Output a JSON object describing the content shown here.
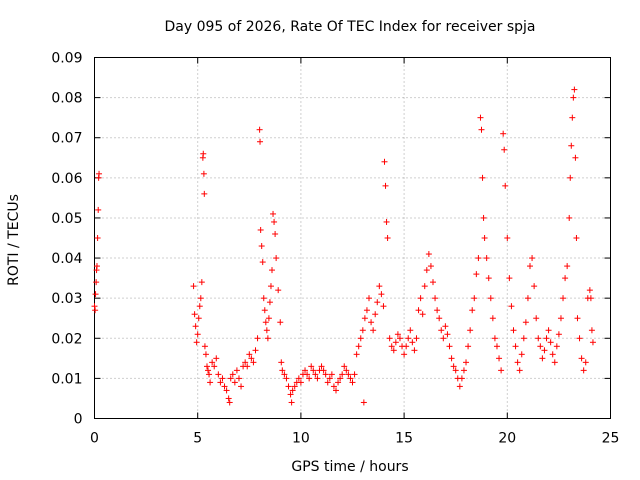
{
  "chart_data": {
    "type": "scatter",
    "title": "Day 095 of 2026, Rate Of TEC Index for receiver spja",
    "xlabel": "GPS time / hours",
    "ylabel": "ROTI / TECUs",
    "xlim": [
      0,
      25
    ],
    "ylim": [
      0,
      0.09
    ],
    "xticks": [
      0,
      5,
      10,
      15,
      20,
      25
    ],
    "xtick_labels": [
      "0",
      "5",
      "10",
      "15",
      "20",
      "25"
    ],
    "yticks": [
      0,
      0.01,
      0.02,
      0.03,
      0.04,
      0.05,
      0.06,
      0.07,
      0.08,
      0.09
    ],
    "ytick_labels": [
      "0",
      "0.01",
      "0.02",
      "0.03",
      "0.04",
      "0.05",
      "0.06",
      "0.07",
      "0.08",
      "0.09"
    ],
    "grid": true,
    "marker": "+",
    "color": "#ff0000",
    "series": [
      {
        "name": "ROTI",
        "points": [
          [
            0.0,
            0.028
          ],
          [
            0.03,
            0.027
          ],
          [
            0.05,
            0.031
          ],
          [
            0.08,
            0.034
          ],
          [
            0.1,
            0.037
          ],
          [
            0.12,
            0.038
          ],
          [
            0.15,
            0.045
          ],
          [
            0.18,
            0.052
          ],
          [
            0.2,
            0.06
          ],
          [
            0.22,
            0.061
          ],
          [
            4.8,
            0.033
          ],
          [
            4.85,
            0.026
          ],
          [
            4.9,
            0.023
          ],
          [
            4.95,
            0.019
          ],
          [
            5.0,
            0.021
          ],
          [
            5.05,
            0.025
          ],
          [
            5.1,
            0.028
          ],
          [
            5.15,
            0.03
          ],
          [
            5.2,
            0.034
          ],
          [
            5.25,
            0.065
          ],
          [
            5.27,
            0.066
          ],
          [
            5.3,
            0.061
          ],
          [
            5.32,
            0.056
          ],
          [
            5.35,
            0.018
          ],
          [
            5.4,
            0.016
          ],
          [
            5.45,
            0.013
          ],
          [
            5.5,
            0.012
          ],
          [
            5.55,
            0.011
          ],
          [
            5.6,
            0.009
          ],
          [
            5.7,
            0.014
          ],
          [
            5.8,
            0.013
          ],
          [
            5.9,
            0.015
          ],
          [
            6.0,
            0.011
          ],
          [
            6.1,
            0.009
          ],
          [
            6.2,
            0.01
          ],
          [
            6.3,
            0.008
          ],
          [
            6.4,
            0.007
          ],
          [
            6.5,
            0.005
          ],
          [
            6.55,
            0.004
          ],
          [
            6.6,
            0.01
          ],
          [
            6.7,
            0.011
          ],
          [
            6.8,
            0.009
          ],
          [
            6.9,
            0.012
          ],
          [
            7.0,
            0.01
          ],
          [
            7.1,
            0.008
          ],
          [
            7.2,
            0.013
          ],
          [
            7.3,
            0.014
          ],
          [
            7.4,
            0.013
          ],
          [
            7.5,
            0.016
          ],
          [
            7.6,
            0.015
          ],
          [
            7.7,
            0.014
          ],
          [
            7.8,
            0.017
          ],
          [
            7.9,
            0.02
          ],
          [
            8.0,
            0.072
          ],
          [
            8.02,
            0.069
          ],
          [
            8.05,
            0.047
          ],
          [
            8.1,
            0.043
          ],
          [
            8.15,
            0.039
          ],
          [
            8.2,
            0.03
          ],
          [
            8.25,
            0.027
          ],
          [
            8.3,
            0.024
          ],
          [
            8.35,
            0.022
          ],
          [
            8.4,
            0.02
          ],
          [
            8.45,
            0.025
          ],
          [
            8.5,
            0.029
          ],
          [
            8.55,
            0.033
          ],
          [
            8.6,
            0.037
          ],
          [
            8.65,
            0.051
          ],
          [
            8.7,
            0.049
          ],
          [
            8.75,
            0.046
          ],
          [
            8.8,
            0.04
          ],
          [
            8.9,
            0.032
          ],
          [
            9.0,
            0.024
          ],
          [
            9.05,
            0.014
          ],
          [
            9.1,
            0.012
          ],
          [
            9.2,
            0.011
          ],
          [
            9.3,
            0.01
          ],
          [
            9.4,
            0.008
          ],
          [
            9.5,
            0.006
          ],
          [
            9.55,
            0.004
          ],
          [
            9.6,
            0.007
          ],
          [
            9.7,
            0.008
          ],
          [
            9.8,
            0.009
          ],
          [
            9.9,
            0.01
          ],
          [
            10.0,
            0.009
          ],
          [
            10.1,
            0.011
          ],
          [
            10.2,
            0.012
          ],
          [
            10.3,
            0.011
          ],
          [
            10.4,
            0.01
          ],
          [
            10.5,
            0.013
          ],
          [
            10.6,
            0.012
          ],
          [
            10.7,
            0.011
          ],
          [
            10.8,
            0.01
          ],
          [
            10.9,
            0.012
          ],
          [
            11.0,
            0.013
          ],
          [
            11.1,
            0.012
          ],
          [
            11.2,
            0.011
          ],
          [
            11.3,
            0.009
          ],
          [
            11.4,
            0.01
          ],
          [
            11.5,
            0.011
          ],
          [
            11.6,
            0.008
          ],
          [
            11.7,
            0.007
          ],
          [
            11.8,
            0.009
          ],
          [
            11.9,
            0.01
          ],
          [
            12.0,
            0.011
          ],
          [
            12.1,
            0.013
          ],
          [
            12.2,
            0.012
          ],
          [
            12.3,
            0.011
          ],
          [
            12.4,
            0.01
          ],
          [
            12.5,
            0.009
          ],
          [
            12.6,
            0.011
          ],
          [
            12.7,
            0.016
          ],
          [
            12.8,
            0.018
          ],
          [
            12.9,
            0.02
          ],
          [
            13.0,
            0.022
          ],
          [
            13.05,
            0.004
          ],
          [
            13.1,
            0.025
          ],
          [
            13.2,
            0.027
          ],
          [
            13.3,
            0.03
          ],
          [
            13.4,
            0.024
          ],
          [
            13.5,
            0.022
          ],
          [
            13.6,
            0.026
          ],
          [
            13.7,
            0.029
          ],
          [
            13.8,
            0.033
          ],
          [
            13.9,
            0.031
          ],
          [
            14.0,
            0.028
          ],
          [
            14.05,
            0.064
          ],
          [
            14.1,
            0.058
          ],
          [
            14.15,
            0.049
          ],
          [
            14.2,
            0.045
          ],
          [
            14.3,
            0.02
          ],
          [
            14.4,
            0.018
          ],
          [
            14.5,
            0.017
          ],
          [
            14.6,
            0.019
          ],
          [
            14.7,
            0.021
          ],
          [
            14.8,
            0.02
          ],
          [
            14.9,
            0.018
          ],
          [
            15.0,
            0.016
          ],
          [
            15.1,
            0.018
          ],
          [
            15.2,
            0.02
          ],
          [
            15.3,
            0.022
          ],
          [
            15.4,
            0.019
          ],
          [
            15.5,
            0.017
          ],
          [
            15.6,
            0.02
          ],
          [
            15.7,
            0.027
          ],
          [
            15.8,
            0.03
          ],
          [
            15.9,
            0.026
          ],
          [
            16.0,
            0.033
          ],
          [
            16.1,
            0.037
          ],
          [
            16.2,
            0.041
          ],
          [
            16.3,
            0.038
          ],
          [
            16.4,
            0.034
          ],
          [
            16.5,
            0.03
          ],
          [
            16.6,
            0.027
          ],
          [
            16.7,
            0.025
          ],
          [
            16.8,
            0.022
          ],
          [
            16.9,
            0.02
          ],
          [
            17.0,
            0.023
          ],
          [
            17.1,
            0.021
          ],
          [
            17.2,
            0.018
          ],
          [
            17.3,
            0.015
          ],
          [
            17.4,
            0.013
          ],
          [
            17.5,
            0.012
          ],
          [
            17.6,
            0.01
          ],
          [
            17.7,
            0.008
          ],
          [
            17.8,
            0.01
          ],
          [
            17.9,
            0.012
          ],
          [
            18.0,
            0.014
          ],
          [
            18.1,
            0.018
          ],
          [
            18.2,
            0.022
          ],
          [
            18.3,
            0.027
          ],
          [
            18.4,
            0.03
          ],
          [
            18.5,
            0.036
          ],
          [
            18.6,
            0.04
          ],
          [
            18.7,
            0.075
          ],
          [
            18.75,
            0.072
          ],
          [
            18.8,
            0.06
          ],
          [
            18.85,
            0.05
          ],
          [
            18.9,
            0.045
          ],
          [
            19.0,
            0.04
          ],
          [
            19.1,
            0.035
          ],
          [
            19.2,
            0.03
          ],
          [
            19.3,
            0.025
          ],
          [
            19.4,
            0.02
          ],
          [
            19.5,
            0.018
          ],
          [
            19.6,
            0.015
          ],
          [
            19.7,
            0.012
          ],
          [
            19.8,
            0.071
          ],
          [
            19.85,
            0.067
          ],
          [
            19.9,
            0.058
          ],
          [
            20.0,
            0.045
          ],
          [
            20.1,
            0.035
          ],
          [
            20.2,
            0.028
          ],
          [
            20.3,
            0.022
          ],
          [
            20.4,
            0.018
          ],
          [
            20.5,
            0.014
          ],
          [
            20.6,
            0.012
          ],
          [
            20.7,
            0.016
          ],
          [
            20.8,
            0.02
          ],
          [
            20.9,
            0.024
          ],
          [
            21.0,
            0.03
          ],
          [
            21.1,
            0.038
          ],
          [
            21.2,
            0.04
          ],
          [
            21.3,
            0.033
          ],
          [
            21.4,
            0.025
          ],
          [
            21.5,
            0.02
          ],
          [
            21.6,
            0.018
          ],
          [
            21.7,
            0.015
          ],
          [
            21.8,
            0.017
          ],
          [
            21.9,
            0.02
          ],
          [
            22.0,
            0.022
          ],
          [
            22.1,
            0.019
          ],
          [
            22.2,
            0.016
          ],
          [
            22.3,
            0.014
          ],
          [
            22.4,
            0.018
          ],
          [
            22.5,
            0.021
          ],
          [
            22.6,
            0.025
          ],
          [
            22.7,
            0.03
          ],
          [
            22.8,
            0.035
          ],
          [
            22.9,
            0.038
          ],
          [
            23.0,
            0.05
          ],
          [
            23.05,
            0.06
          ],
          [
            23.1,
            0.068
          ],
          [
            23.15,
            0.075
          ],
          [
            23.2,
            0.08
          ],
          [
            23.25,
            0.082
          ],
          [
            23.3,
            0.065
          ],
          [
            23.35,
            0.045
          ],
          [
            23.4,
            0.025
          ],
          [
            23.5,
            0.02
          ],
          [
            23.6,
            0.015
          ],
          [
            23.7,
            0.012
          ],
          [
            23.8,
            0.014
          ],
          [
            23.9,
            0.03
          ],
          [
            24.0,
            0.032
          ],
          [
            24.05,
            0.03
          ],
          [
            24.1,
            0.022
          ],
          [
            24.15,
            0.019
          ]
        ]
      }
    ]
  }
}
